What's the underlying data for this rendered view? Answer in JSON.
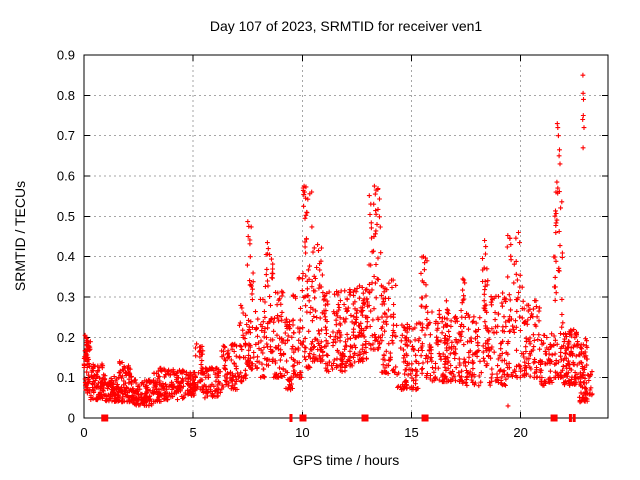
{
  "chart_data": {
    "type": "scatter",
    "title": "Day 107 of 2023, SRMTID for receiver ven1",
    "xlabel": "GPS time / hours",
    "ylabel": "SRMTID / TECUs",
    "xlim": [
      0,
      24
    ],
    "ylim": [
      0,
      0.9
    ],
    "xticks": {
      "values": [
        0,
        5,
        10,
        15,
        20
      ],
      "labels": [
        "0",
        "5",
        "10",
        "15",
        "20"
      ]
    },
    "yticks": {
      "values": [
        0,
        0.1,
        0.2,
        0.3,
        0.4,
        0.5,
        0.6,
        0.7,
        0.8,
        0.9
      ],
      "labels": [
        "0",
        "0.1",
        "0.2",
        "0.3",
        "0.4",
        "0.5",
        "0.6",
        "0.7",
        "0.8",
        "0.9"
      ]
    },
    "grid": {
      "show": true,
      "color": "#a6a6a6",
      "dash": [
        2,
        3
      ]
    },
    "legend": "none",
    "marker": {
      "shape": "plus",
      "color": "#ff0000",
      "size": 5
    },
    "axis_color": "#000000",
    "series": [
      {
        "name": "SRMTID",
        "representation": "density-clusters",
        "clusters_comment": "each cluster = [x_start_hours, x_end_hours, n_points, y_min_TECUs, y_max_TECUs, bottom_weight_skew]",
        "clusters": [
          [
            0.0,
            0.3,
            55,
            0.06,
            0.19,
            1.0
          ],
          [
            0.05,
            0.18,
            12,
            0.13,
            0.205,
            1.0
          ],
          [
            0.3,
            0.9,
            75,
            0.045,
            0.135,
            1.3
          ],
          [
            0.9,
            1.6,
            85,
            0.04,
            0.105,
            1.2
          ],
          [
            1.6,
            2.2,
            80,
            0.04,
            0.14,
            1.4
          ],
          [
            2.2,
            3.1,
            100,
            0.03,
            0.095,
            1.2
          ],
          [
            3.1,
            3.8,
            75,
            0.04,
            0.125,
            1.3
          ],
          [
            3.8,
            4.6,
            75,
            0.045,
            0.12,
            1.2
          ],
          [
            4.6,
            5.1,
            55,
            0.055,
            0.115,
            1.1
          ],
          [
            5.1,
            5.45,
            35,
            0.07,
            0.185,
            1.4
          ],
          [
            5.45,
            6.3,
            70,
            0.05,
            0.125,
            1.2
          ],
          [
            6.3,
            7.1,
            70,
            0.07,
            0.185,
            1.3
          ],
          [
            7.1,
            7.45,
            35,
            0.09,
            0.28,
            1.5
          ],
          [
            7.45,
            7.8,
            45,
            0.12,
            0.49,
            1.8
          ],
          [
            7.8,
            8.3,
            40,
            0.1,
            0.3,
            1.5
          ],
          [
            8.3,
            8.65,
            40,
            0.13,
            0.435,
            1.7
          ],
          [
            8.65,
            9.25,
            55,
            0.1,
            0.33,
            1.6
          ],
          [
            9.25,
            9.55,
            35,
            0.07,
            0.25,
            1.4
          ],
          [
            9.55,
            10.0,
            45,
            0.1,
            0.35,
            1.5
          ],
          [
            10.0,
            10.45,
            55,
            0.12,
            0.575,
            1.6
          ],
          [
            10.45,
            11.0,
            60,
            0.14,
            0.43,
            1.7
          ],
          [
            11.0,
            12.4,
            150,
            0.115,
            0.32,
            1.4
          ],
          [
            12.4,
            13.0,
            75,
            0.14,
            0.33,
            1.4
          ],
          [
            13.05,
            13.6,
            60,
            0.17,
            0.575,
            1.6
          ],
          [
            13.6,
            14.3,
            70,
            0.11,
            0.345,
            1.5
          ],
          [
            14.3,
            15.35,
            95,
            0.07,
            0.24,
            1.3
          ],
          [
            15.4,
            15.75,
            40,
            0.1,
            0.4,
            1.6
          ],
          [
            15.75,
            17.1,
            120,
            0.09,
            0.27,
            1.4
          ],
          [
            16.5,
            16.75,
            15,
            0.15,
            0.345,
            1.4
          ],
          [
            17.1,
            18.2,
            85,
            0.08,
            0.26,
            1.4
          ],
          [
            17.25,
            17.5,
            12,
            0.2,
            0.345,
            1.2
          ],
          [
            18.25,
            18.55,
            40,
            0.13,
            0.44,
            1.6
          ],
          [
            18.55,
            19.35,
            75,
            0.08,
            0.31,
            1.4
          ],
          [
            19.35,
            20.1,
            65,
            0.1,
            0.46,
            1.6
          ],
          [
            20.1,
            20.9,
            75,
            0.1,
            0.3,
            1.5
          ],
          [
            20.9,
            21.45,
            50,
            0.08,
            0.21,
            1.3
          ],
          [
            21.5,
            21.95,
            60,
            0.1,
            0.565,
            1.8
          ],
          [
            21.95,
            22.65,
            95,
            0.08,
            0.22,
            1.3
          ],
          [
            22.65,
            23.05,
            65,
            0.04,
            0.2,
            1.5
          ],
          [
            23.05,
            23.3,
            14,
            0.05,
            0.115,
            1.2
          ]
        ],
        "peak_points": [
          [
            0.05,
            0.205
          ],
          [
            7.5,
            0.487
          ],
          [
            7.55,
            0.475
          ],
          [
            7.52,
            0.45
          ],
          [
            7.6,
            0.432
          ],
          [
            8.4,
            0.435
          ],
          [
            8.44,
            0.42
          ],
          [
            8.5,
            0.405
          ],
          [
            10.08,
            0.575
          ],
          [
            10.1,
            0.56
          ],
          [
            10.15,
            0.545
          ],
          [
            10.06,
            0.525
          ],
          [
            10.2,
            0.51
          ],
          [
            10.12,
            0.495
          ],
          [
            10.7,
            0.43
          ],
          [
            10.74,
            0.415
          ],
          [
            13.3,
            0.575
          ],
          [
            13.34,
            0.555
          ],
          [
            13.27,
            0.53
          ],
          [
            13.38,
            0.505
          ],
          [
            13.42,
            0.48
          ],
          [
            15.55,
            0.4
          ],
          [
            15.6,
            0.385
          ],
          [
            17.35,
            0.345
          ],
          [
            18.35,
            0.44
          ],
          [
            18.4,
            0.425
          ],
          [
            19.5,
            0.445
          ],
          [
            19.55,
            0.43
          ],
          [
            19.9,
            0.46
          ],
          [
            19.95,
            0.435
          ],
          [
            19.42,
            0.03
          ],
          [
            21.68,
            0.73
          ],
          [
            21.7,
            0.72
          ],
          [
            21.73,
            0.7
          ],
          [
            21.78,
            0.665
          ],
          [
            21.76,
            0.65
          ],
          [
            21.8,
            0.63
          ],
          [
            21.66,
            0.585
          ],
          [
            21.7,
            0.57
          ],
          [
            21.62,
            0.56
          ],
          [
            22.85,
            0.85
          ],
          [
            22.86,
            0.805
          ],
          [
            22.88,
            0.79
          ],
          [
            22.87,
            0.75
          ],
          [
            22.84,
            0.74
          ],
          [
            22.9,
            0.72
          ],
          [
            22.86,
            0.67
          ]
        ]
      }
    ],
    "zero_event_markers": {
      "color": "#ff0000",
      "square_x_hours": [
        0.95,
        10.03,
        12.87,
        15.62,
        21.53
      ],
      "bar_x_hours": [
        9.48,
        22.28,
        22.45
      ]
    }
  }
}
